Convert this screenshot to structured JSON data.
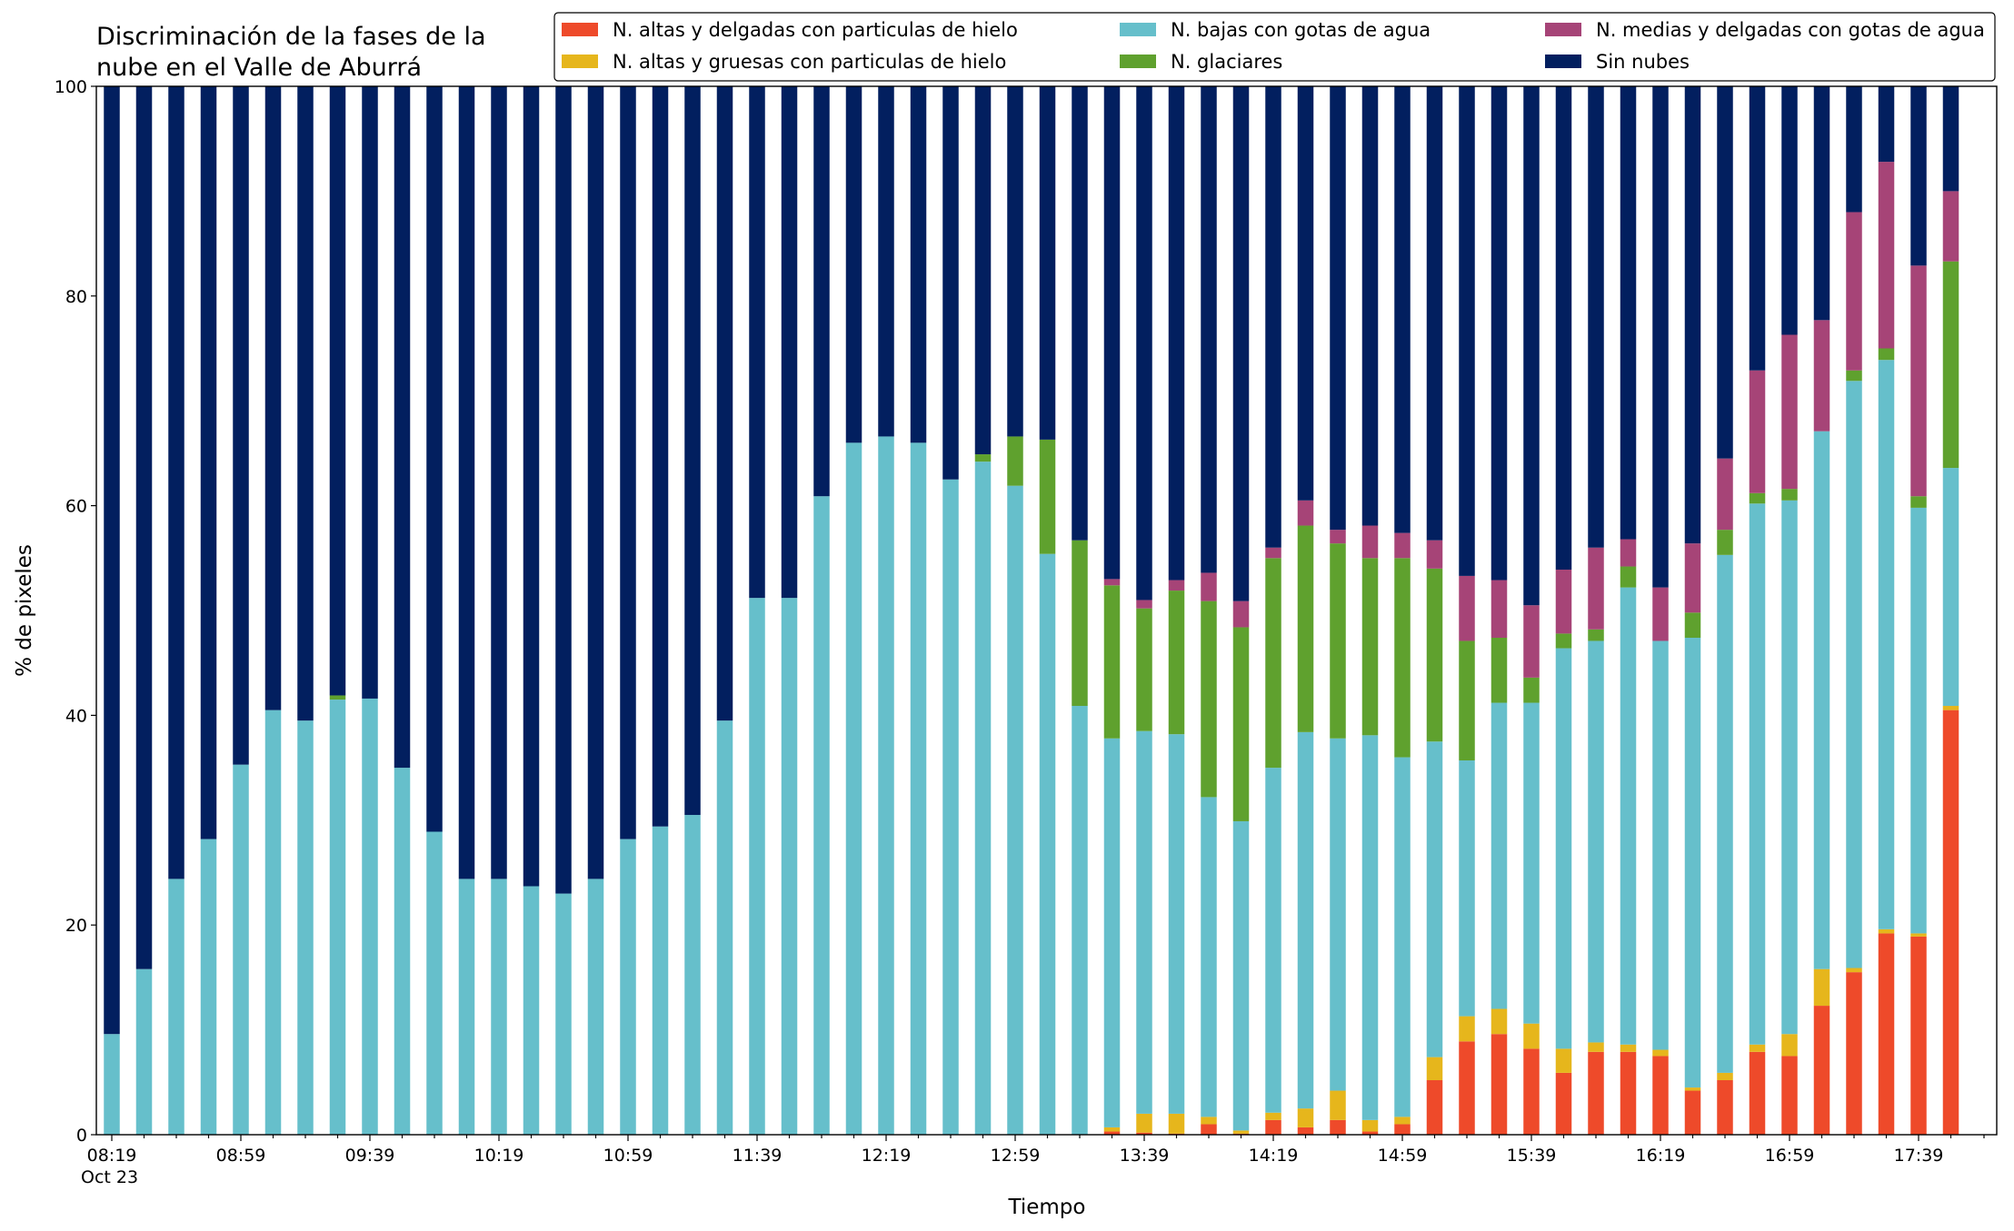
{
  "chart_data": {
    "type": "stacked_bar",
    "title_lines": [
      "Discriminación de la fases de la",
      "nube en el Valle de Aburrá"
    ],
    "xlabel": "Tiempo",
    "ylabel": "% de pixeles",
    "date_label": "Oct 23",
    "ylim": [
      0,
      100
    ],
    "yticks": [
      0,
      20,
      40,
      60,
      80,
      100
    ],
    "legend": "upper right",
    "categories": [
      "08:19",
      null,
      null,
      null,
      "08:59",
      null,
      null,
      null,
      "09:39",
      null,
      null,
      null,
      "10:19",
      null,
      null,
      null,
      "10:59",
      null,
      null,
      null,
      "11:39",
      null,
      null,
      null,
      "12:19",
      null,
      null,
      null,
      "12:59",
      null,
      null,
      null,
      "13:39",
      null,
      null,
      null,
      "14:19",
      null,
      null,
      null,
      "14:59",
      null,
      null,
      null,
      "15:39",
      null,
      null,
      null,
      "16:19",
      null,
      null,
      null,
      "16:59",
      null,
      null,
      null,
      "17:39",
      null
    ],
    "series": [
      {
        "name": "N. altas y delgadas con particulas de hielo",
        "color": "#ee4a2a",
        "values": [
          0,
          0,
          0,
          0,
          0,
          0,
          0,
          0,
          0,
          0,
          0,
          0,
          0,
          0,
          0,
          0,
          0,
          0,
          0,
          0,
          0,
          0,
          0,
          0,
          0,
          0,
          0,
          0,
          0,
          0,
          0,
          0.3,
          0.2,
          0.1,
          1.0,
          0.1,
          1.4,
          0.7,
          1.4,
          0.3,
          1.0,
          5.2,
          8.9,
          9.6,
          8.2,
          5.9,
          7.9,
          7.9,
          7.5,
          4.2,
          5.2,
          7.9,
          7.5,
          12.3,
          15.5,
          19.2,
          18.9,
          40.5
        ]
      },
      {
        "name": "N. altas y gruesas con particulas de hielo",
        "color": "#e6b61c",
        "values": [
          0,
          0,
          0,
          0,
          0,
          0,
          0,
          0,
          0,
          0,
          0,
          0,
          0,
          0,
          0,
          0,
          0,
          0,
          0,
          0,
          0,
          0,
          0,
          0,
          0,
          0,
          0,
          0,
          0,
          0,
          0,
          0.4,
          1.8,
          1.9,
          0.7,
          0.3,
          0.7,
          1.8,
          2.8,
          1.1,
          0.7,
          2.2,
          2.4,
          2.4,
          2.4,
          2.3,
          0.9,
          0.7,
          0.6,
          0.3,
          0.7,
          0.7,
          2.1,
          3.5,
          0.4,
          0.4,
          0.3,
          0.4
        ]
      },
      {
        "name": "N. bajas con gotas de agua",
        "color": "#66bfcb",
        "values": [
          9.6,
          15.8,
          24.4,
          28.2,
          35.3,
          40.5,
          39.5,
          41.5,
          41.6,
          35.0,
          28.9,
          24.4,
          24.4,
          23.7,
          23.0,
          24.4,
          28.2,
          29.4,
          30.5,
          39.5,
          51.2,
          51.2,
          60.9,
          66.0,
          66.6,
          66.0,
          62.5,
          64.2,
          61.9,
          55.4,
          40.9,
          37.1,
          36.5,
          36.2,
          30.5,
          29.5,
          32.9,
          35.9,
          33.6,
          36.7,
          34.3,
          30.1,
          24.4,
          29.2,
          30.6,
          38.2,
          38.3,
          43.6,
          39.0,
          42.9,
          49.4,
          51.6,
          50.9,
          51.3,
          56.0,
          54.3,
          40.6,
          22.7
        ]
      },
      {
        "name": "N. glaciares",
        "color": "#5fa12e",
        "values": [
          0,
          0,
          0,
          0,
          0,
          0,
          0,
          0.4,
          0,
          0,
          0,
          0,
          0,
          0,
          0,
          0,
          0,
          0,
          0,
          0,
          0,
          0,
          0,
          0,
          0,
          0,
          0,
          0.7,
          4.7,
          10.9,
          15.8,
          14.6,
          11.7,
          13.7,
          18.7,
          18.5,
          20.0,
          19.7,
          18.6,
          16.9,
          19.0,
          16.5,
          11.4,
          6.2,
          2.4,
          1.4,
          1.1,
          2.0,
          0,
          2.4,
          2.4,
          1.0,
          1.1,
          0,
          1.0,
          1.1,
          1.1,
          19.7
        ]
      },
      {
        "name": "N. medias y delgadas con gotas de agua",
        "color": "#a64477",
        "values": [
          0,
          0,
          0,
          0,
          0,
          0,
          0,
          0,
          0,
          0,
          0,
          0,
          0,
          0,
          0,
          0,
          0,
          0,
          0,
          0,
          0,
          0,
          0,
          0,
          0,
          0,
          0,
          0,
          0,
          0,
          0,
          0.6,
          0.8,
          1.0,
          2.7,
          2.5,
          1.0,
          2.4,
          1.3,
          3.1,
          2.4,
          2.7,
          6.2,
          5.5,
          6.9,
          6.1,
          7.8,
          2.6,
          5.1,
          6.6,
          6.8,
          11.7,
          14.7,
          10.6,
          15.1,
          17.8,
          22.0,
          6.7
        ]
      },
      {
        "name": "Sin nubes",
        "color": "#021f5f",
        "values": [
          90.4,
          84.2,
          75.6,
          71.8,
          64.7,
          59.5,
          60.5,
          58.1,
          58.4,
          65.0,
          71.1,
          75.6,
          75.6,
          76.3,
          77.0,
          75.6,
          71.8,
          70.6,
          69.5,
          60.5,
          48.8,
          48.8,
          39.1,
          34.0,
          33.4,
          34.0,
          37.5,
          35.1,
          33.4,
          33.7,
          43.3,
          47.0,
          49.0,
          47.1,
          46.4,
          49.1,
          44.0,
          39.5,
          42.3,
          41.9,
          42.6,
          43.3,
          46.7,
          47.1,
          49.5,
          46.1,
          44.0,
          43.2,
          47.8,
          43.6,
          35.5,
          27.1,
          23.7,
          22.3,
          12.0,
          7.2,
          17.1,
          10.0
        ]
      }
    ]
  }
}
